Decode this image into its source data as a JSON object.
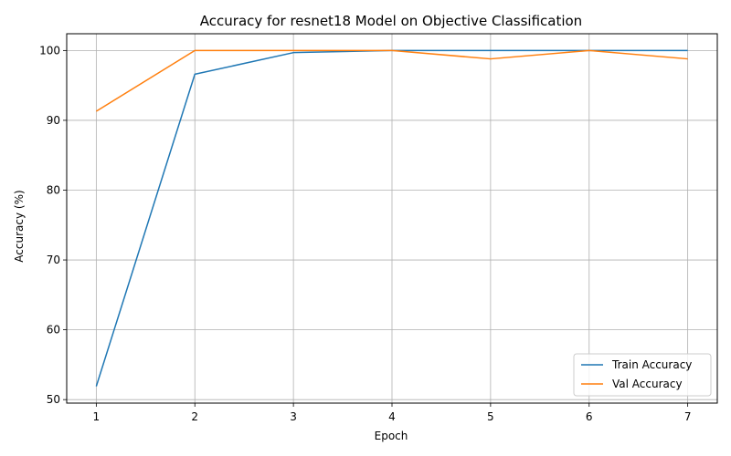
{
  "chart_data": {
    "type": "line",
    "title": "Accuracy for resnet18 Model on Objective Classification",
    "xlabel": "Epoch",
    "ylabel": "Accuracy (%)",
    "x": [
      1,
      2,
      3,
      4,
      5,
      6,
      7
    ],
    "xticks": [
      "1",
      "2",
      "3",
      "4",
      "5",
      "6",
      "7"
    ],
    "yticks": [
      "50",
      "60",
      "70",
      "80",
      "90",
      "100"
    ],
    "xlim": [
      0.7,
      7.3
    ],
    "ylim": [
      49.5,
      102.4
    ],
    "grid": true,
    "legend_position": "lower-right",
    "series": [
      {
        "name": "Train Accuracy",
        "color": "#1f77b4",
        "values": [
          51.9,
          96.6,
          99.7,
          100.0,
          100.0,
          100.0,
          100.0
        ]
      },
      {
        "name": "Val Accuracy",
        "color": "#ff7f0e",
        "values": [
          91.3,
          100.0,
          100.0,
          100.0,
          98.8,
          100.0,
          98.8
        ]
      }
    ]
  }
}
